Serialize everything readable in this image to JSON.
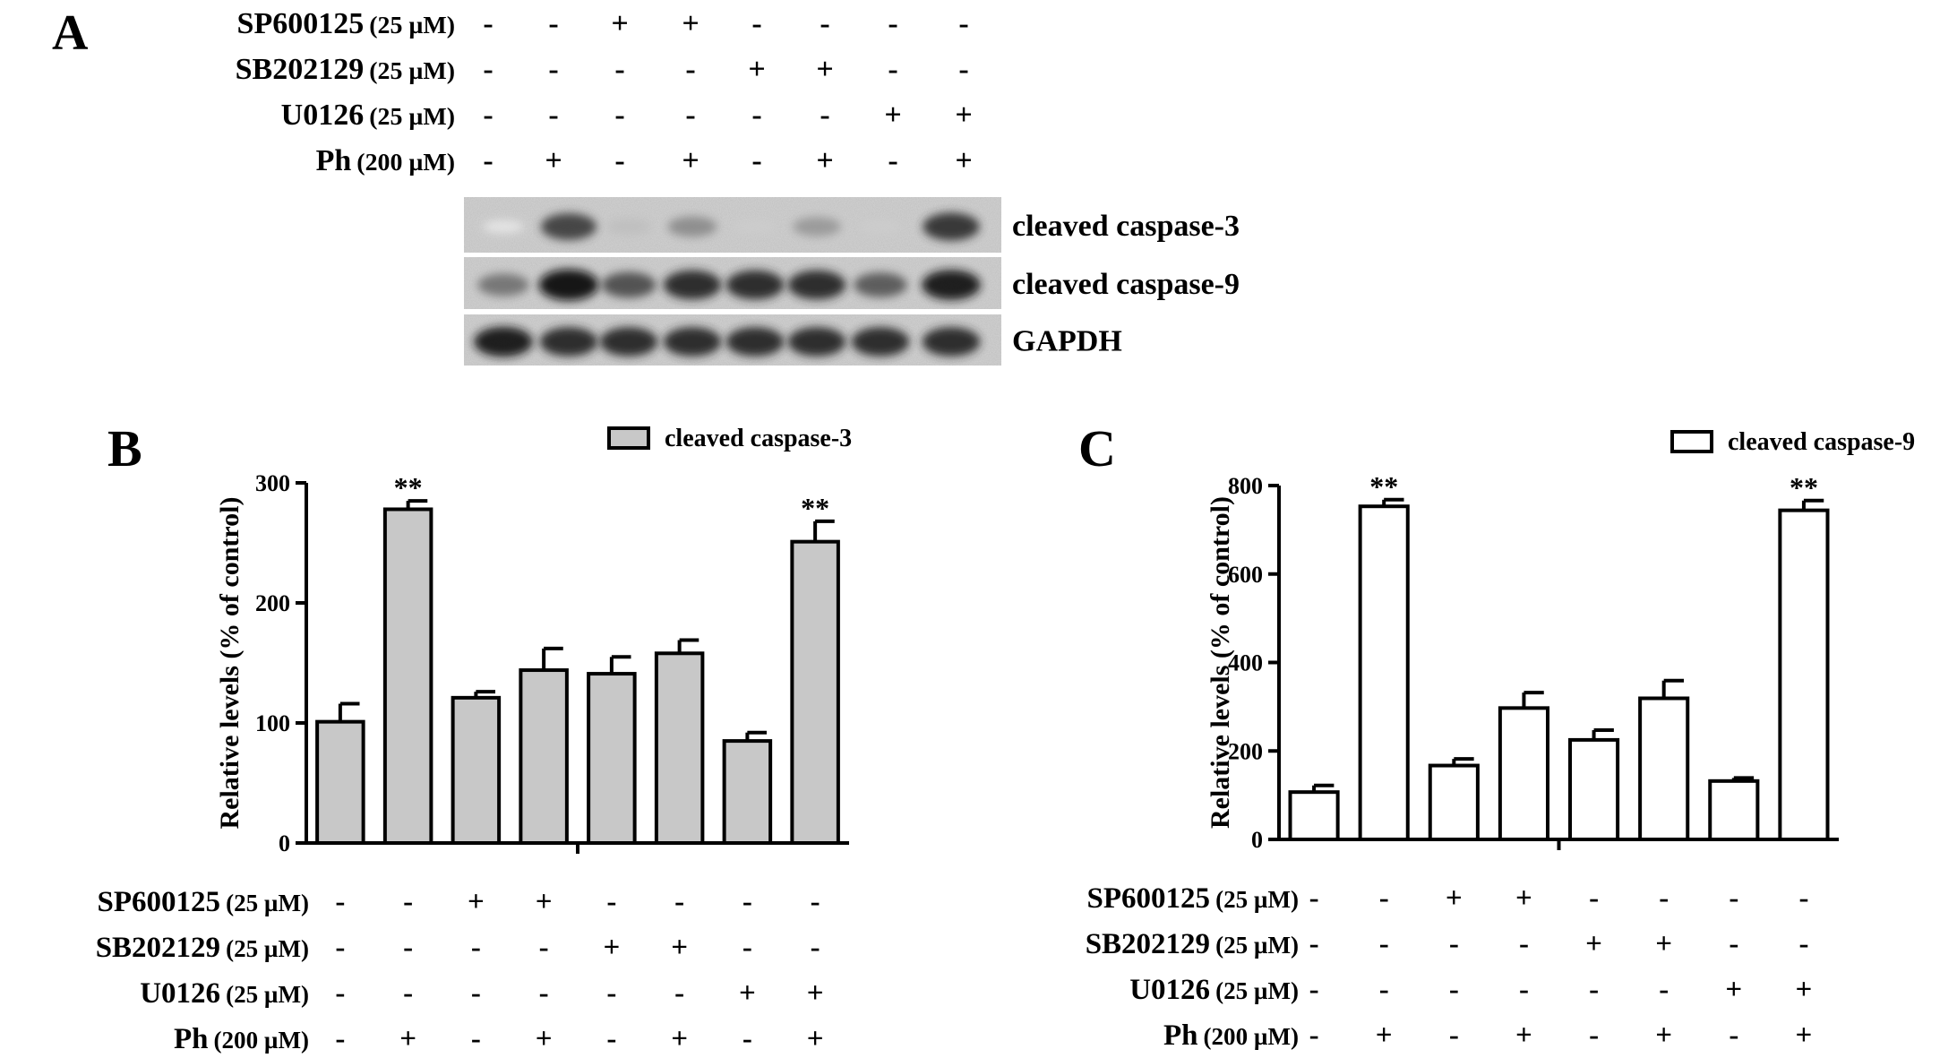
{
  "panel_a": {
    "letter": "A",
    "treatments": [
      {
        "label": "SP600125",
        "unit": "(25 µM)",
        "signs": [
          "-",
          "-",
          "+",
          "+",
          "-",
          "-",
          "-",
          "-"
        ]
      },
      {
        "label": "SB202129",
        "unit": "(25 µM)",
        "signs": [
          "-",
          "-",
          "-",
          "-",
          "+",
          "+",
          "-",
          "-"
        ]
      },
      {
        "label": "U0126",
        "unit": "(25 µM)",
        "signs": [
          "-",
          "-",
          "-",
          "-",
          "-",
          "-",
          "+",
          "+"
        ]
      },
      {
        "label": "Ph",
        "unit": "(200 µM)",
        "signs": [
          "-",
          "+",
          "-",
          "+",
          "-",
          "+",
          "-",
          "+"
        ]
      }
    ],
    "blots": [
      {
        "label": "cleaved caspase-3",
        "intensities": [
          0.1,
          0.75,
          0.25,
          0.45,
          0.2,
          0.4,
          0.2,
          0.8
        ]
      },
      {
        "label": "cleaved caspase-9",
        "intensities": [
          0.55,
          0.95,
          0.7,
          0.85,
          0.85,
          0.85,
          0.65,
          0.9
        ]
      },
      {
        "label": "GAPDH",
        "intensities": [
          0.9,
          0.85,
          0.85,
          0.85,
          0.85,
          0.85,
          0.85,
          0.85
        ]
      }
    ]
  },
  "chart_data": [
    {
      "panel": "B",
      "type": "bar",
      "legend": "cleaved caspase-3",
      "legend_position": "top-right",
      "bar_color": "#c8c8c8",
      "ylabel": "Relative  levels (% of control)",
      "ylim": [
        0,
        300
      ],
      "yticks": [
        "0",
        "100",
        "200",
        "300"
      ],
      "values": [
        101,
        278,
        121,
        144,
        141,
        158,
        85,
        251
      ],
      "errors": [
        15,
        7,
        5,
        18,
        14,
        11,
        7,
        17
      ],
      "annotations": [
        "",
        "**",
        "",
        "",
        "",
        "",
        "",
        "**"
      ],
      "treatments": [
        {
          "label": "SP600125",
          "unit": "(25 µM)",
          "signs": [
            "-",
            "-",
            "+",
            "+",
            "-",
            "-",
            "-",
            "-"
          ]
        },
        {
          "label": "SB202129",
          "unit": "(25 µM)",
          "signs": [
            "-",
            "-",
            "-",
            "-",
            "+",
            "+",
            "-",
            "-"
          ]
        },
        {
          "label": "U0126",
          "unit": "(25 µM)",
          "signs": [
            "-",
            "-",
            "-",
            "-",
            "-",
            "-",
            "+",
            "+"
          ]
        },
        {
          "label": "Ph",
          "unit": "(200 µM)",
          "signs": [
            "-",
            "+",
            "-",
            "+",
            "-",
            "+",
            "-",
            "+"
          ]
        }
      ]
    },
    {
      "panel": "C",
      "type": "bar",
      "legend": "cleaved caspase-9",
      "legend_position": "top-right",
      "bar_color": "#ffffff",
      "ylabel": "Relative  levels (% of control)",
      "ylim": [
        0,
        800
      ],
      "yticks": [
        "0",
        "200",
        "400",
        "600",
        "800"
      ],
      "values": [
        107,
        753,
        167,
        297,
        225,
        319,
        132,
        744
      ],
      "errors": [
        15,
        15,
        15,
        35,
        22,
        40,
        7,
        22
      ],
      "annotations": [
        "",
        "**",
        "",
        "",
        "",
        "",
        "",
        "**"
      ],
      "treatments": [
        {
          "label": "SP600125",
          "unit": "(25 µM)",
          "signs": [
            "-",
            "-",
            "+",
            "+",
            "-",
            "-",
            "-",
            "-"
          ]
        },
        {
          "label": "SB202129",
          "unit": "(25 µM)",
          "signs": [
            "-",
            "-",
            "-",
            "-",
            "+",
            "+",
            "-",
            "-"
          ]
        },
        {
          "label": "U0126",
          "unit": "(25 µM)",
          "signs": [
            "-",
            "-",
            "-",
            "-",
            "-",
            "-",
            "+",
            "+"
          ]
        },
        {
          "label": "Ph",
          "unit": "(200 µM)",
          "signs": [
            "-",
            "+",
            "-",
            "+",
            "-",
            "+",
            "-",
            "+"
          ]
        }
      ]
    }
  ]
}
